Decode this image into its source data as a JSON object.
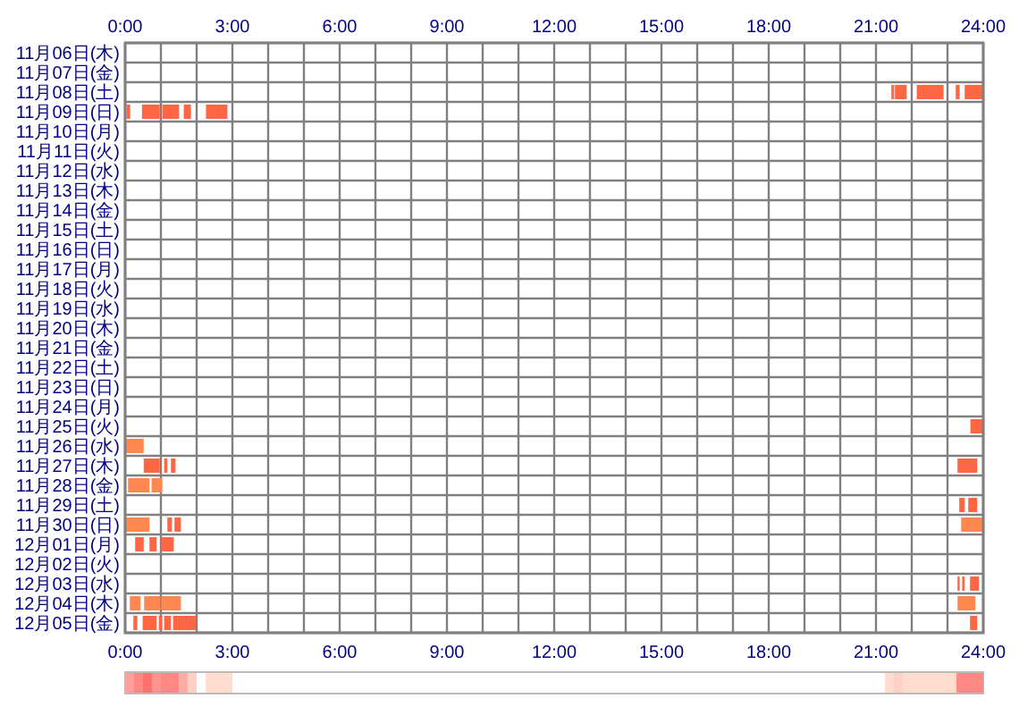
{
  "chart_data": {
    "type": "bar",
    "orientation": "horizontal",
    "grid": true,
    "categories": [
      "11月06日(木)",
      "11月07日(金)",
      "11月08日(土)",
      "11月09日(日)",
      "11月10日(月)",
      "11月11日(火)",
      "11月12日(水)",
      "11月13日(木)",
      "11月14日(金)",
      "11月15日(土)",
      "11月16日(日)",
      "11月17日(月)",
      "11月18日(火)",
      "11月19日(水)",
      "11月20日(木)",
      "11月21日(金)",
      "11月22日(土)",
      "11月23日(日)",
      "11月24日(月)",
      "11月25日(火)",
      "11月26日(水)",
      "11月27日(木)",
      "11月28日(金)",
      "11月29日(土)",
      "11月30日(日)",
      "12月01日(月)",
      "12月02日(火)",
      "12月03日(水)",
      "12月04日(木)",
      "12月05日(金)"
    ],
    "xlim": [
      0,
      24
    ],
    "xticks": [
      {
        "value": 0,
        "label": "0:00"
      },
      {
        "value": 1,
        "label": null
      },
      {
        "value": 2,
        "label": null
      },
      {
        "value": 3,
        "label": "3:00"
      },
      {
        "value": 4,
        "label": null
      },
      {
        "value": 5,
        "label": null
      },
      {
        "value": 6,
        "label": "6:00"
      },
      {
        "value": 7,
        "label": null
      },
      {
        "value": 8,
        "label": null
      },
      {
        "value": 9,
        "label": "9:00"
      },
      {
        "value": 10,
        "label": null
      },
      {
        "value": 11,
        "label": null
      },
      {
        "value": 12,
        "label": "12:00"
      },
      {
        "value": 13,
        "label": null
      },
      {
        "value": 14,
        "label": null
      },
      {
        "value": 15,
        "label": "15:00"
      },
      {
        "value": 16,
        "label": null
      },
      {
        "value": 17,
        "label": null
      },
      {
        "value": 18,
        "label": "18:00"
      },
      {
        "value": 19,
        "label": null
      },
      {
        "value": 20,
        "label": null
      },
      {
        "value": 21,
        "label": "21:00"
      },
      {
        "value": 22,
        "label": null
      },
      {
        "value": 23,
        "label": null
      },
      {
        "value": 24,
        "label": "24:00"
      }
    ],
    "x2lim": [
      0,
      24
    ],
    "x2ticks": [
      {
        "value": 0,
        "label": "0:00"
      },
      {
        "value": 3,
        "label": "3:00"
      },
      {
        "value": 6,
        "label": "6:00"
      },
      {
        "value": 9,
        "label": "9:00"
      },
      {
        "value": 12,
        "label": "12:00"
      },
      {
        "value": 15,
        "label": "15:00"
      },
      {
        "value": 18,
        "label": "18:00"
      },
      {
        "value": 21,
        "label": "21:00"
      },
      {
        "value": 24,
        "label": "24:00"
      }
    ],
    "series": [
      {
        "color": "#ff6644",
        "base": [
          null,
          null,
          21.43,
          0.04,
          null,
          null,
          null,
          null,
          null,
          null,
          null,
          null,
          null,
          null,
          null,
          null,
          null,
          null,
          null,
          23.64,
          null,
          0.52,
          null,
          23.33,
          1.18,
          0.28,
          null,
          23.28,
          null,
          0.23
        ],
        "values": [
          null,
          null,
          0.08,
          0.1,
          null,
          null,
          null,
          null,
          null,
          null,
          null,
          null,
          null,
          null,
          null,
          null,
          null,
          null,
          null,
          0.34,
          null,
          0.45,
          null,
          0.15,
          0.13,
          0.24,
          null,
          0.06,
          null,
          0.11
        ]
      },
      {
        "color": "#ff6644",
        "base": [
          null,
          null,
          21.53,
          0.47,
          null,
          null,
          null,
          null,
          null,
          null,
          null,
          null,
          null,
          null,
          null,
          null,
          null,
          null,
          null,
          null,
          null,
          1.09,
          null,
          23.58,
          1.38,
          0.68,
          null,
          23.41,
          null,
          0.49
        ],
        "values": [
          null,
          null,
          0.33,
          0.5,
          null,
          null,
          null,
          null,
          null,
          null,
          null,
          null,
          null,
          null,
          null,
          null,
          null,
          null,
          null,
          null,
          null,
          0.09,
          null,
          0.25,
          0.18,
          0.2,
          null,
          0.07,
          null,
          0.39
        ]
      },
      {
        "color": "#ff6644",
        "base": [
          null,
          null,
          22.14,
          1.04,
          null,
          null,
          null,
          null,
          null,
          null,
          null,
          null,
          null,
          null,
          null,
          null,
          null,
          null,
          null,
          null,
          null,
          1.28,
          null,
          null,
          null,
          1.01,
          null,
          23.63,
          null,
          0.94
        ],
        "values": [
          null,
          null,
          0.75,
          0.47,
          null,
          null,
          null,
          null,
          null,
          null,
          null,
          null,
          null,
          null,
          null,
          null,
          null,
          null,
          null,
          null,
          null,
          0.13,
          null,
          null,
          null,
          0.35,
          null,
          0.25,
          null,
          0.1
        ]
      },
      {
        "color": "#ff6644",
        "base": [
          null,
          null,
          23.23,
          1.64,
          null,
          null,
          null,
          null,
          null,
          null,
          null,
          null,
          null,
          null,
          null,
          null,
          null,
          null,
          null,
          null,
          null,
          23.28,
          null,
          null,
          null,
          null,
          null,
          null,
          null,
          1.09
        ],
        "values": [
          null,
          null,
          0.11,
          0.2,
          null,
          null,
          null,
          null,
          null,
          null,
          null,
          null,
          null,
          null,
          null,
          null,
          null,
          null,
          null,
          null,
          null,
          0.55,
          null,
          null,
          null,
          null,
          null,
          null,
          null,
          0.19
        ]
      },
      {
        "color": "#ff6644",
        "base": [
          null,
          null,
          23.48,
          2.26,
          null,
          null,
          null,
          null,
          null,
          null,
          null,
          null,
          null,
          null,
          null,
          null,
          null,
          null,
          null,
          null,
          null,
          null,
          null,
          null,
          null,
          null,
          null,
          null,
          null,
          1.34
        ],
        "values": [
          null,
          null,
          0.5,
          0.6,
          null,
          null,
          null,
          null,
          null,
          null,
          null,
          null,
          null,
          null,
          null,
          null,
          null,
          null,
          null,
          null,
          null,
          null,
          null,
          null,
          null,
          null,
          null,
          null,
          null,
          0.64
        ]
      },
      {
        "color": "#ff6644",
        "base": [
          null,
          null,
          null,
          null,
          null,
          null,
          null,
          null,
          null,
          null,
          null,
          null,
          null,
          null,
          null,
          null,
          null,
          null,
          null,
          null,
          null,
          null,
          null,
          null,
          null,
          null,
          null,
          null,
          null,
          23.63
        ],
        "values": [
          null,
          null,
          null,
          null,
          null,
          null,
          null,
          null,
          null,
          null,
          null,
          null,
          null,
          null,
          null,
          null,
          null,
          null,
          null,
          null,
          null,
          null,
          null,
          null,
          null,
          null,
          null,
          null,
          null,
          0.2
        ]
      },
      {
        "color": "#ff8850",
        "base": [
          null,
          null,
          null,
          null,
          null,
          null,
          null,
          null,
          null,
          null,
          null,
          null,
          null,
          null,
          null,
          null,
          null,
          null,
          null,
          null,
          0.02,
          null,
          0.08,
          null,
          0.02,
          null,
          null,
          null,
          0.13,
          null
        ],
        "values": [
          null,
          null,
          null,
          null,
          null,
          null,
          null,
          null,
          null,
          null,
          null,
          null,
          null,
          null,
          null,
          null,
          null,
          null,
          null,
          null,
          0.5,
          null,
          0.6,
          null,
          0.66,
          null,
          null,
          null,
          0.3,
          null
        ]
      },
      {
        "color": "#ff8850",
        "base": [
          null,
          null,
          null,
          null,
          null,
          null,
          null,
          null,
          null,
          null,
          null,
          null,
          null,
          null,
          null,
          null,
          null,
          null,
          null,
          null,
          null,
          null,
          0.74,
          null,
          23.38,
          null,
          null,
          null,
          0.53,
          null
        ],
        "values": [
          null,
          null,
          null,
          null,
          null,
          null,
          null,
          null,
          null,
          null,
          null,
          null,
          null,
          null,
          null,
          null,
          null,
          null,
          null,
          null,
          null,
          null,
          0.3,
          null,
          0.6,
          null,
          null,
          null,
          0.45,
          null
        ]
      },
      {
        "color": "#ff8850",
        "base": [
          null,
          null,
          null,
          null,
          null,
          null,
          null,
          null,
          null,
          null,
          null,
          null,
          null,
          null,
          null,
          null,
          null,
          null,
          null,
          null,
          null,
          null,
          null,
          null,
          null,
          null,
          null,
          null,
          1.01,
          null
        ],
        "values": [
          null,
          null,
          null,
          null,
          null,
          null,
          null,
          null,
          null,
          null,
          null,
          null,
          null,
          null,
          null,
          null,
          null,
          null,
          null,
          null,
          null,
          null,
          null,
          null,
          null,
          null,
          null,
          null,
          0.55,
          null
        ]
      },
      {
        "color": "#ff8850",
        "base": [
          null,
          null,
          null,
          null,
          null,
          null,
          null,
          null,
          null,
          null,
          null,
          null,
          null,
          null,
          null,
          null,
          null,
          null,
          null,
          null,
          null,
          null,
          null,
          null,
          null,
          null,
          null,
          null,
          23.28,
          null
        ],
        "values": [
          null,
          null,
          null,
          null,
          null,
          null,
          null,
          null,
          null,
          null,
          null,
          null,
          null,
          null,
          null,
          null,
          null,
          null,
          null,
          null,
          null,
          null,
          null,
          null,
          null,
          null,
          null,
          null,
          0.5,
          null
        ]
      }
    ]
  }
}
